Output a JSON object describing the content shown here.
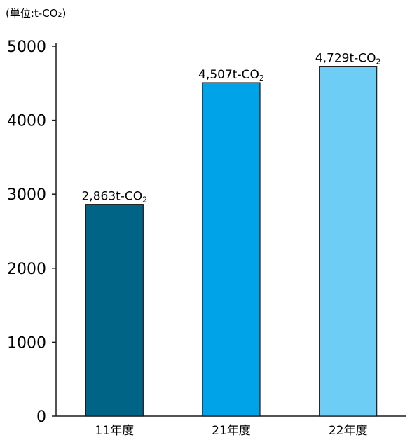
{
  "chart_data": {
    "type": "bar",
    "unit_label": "(単位:t-CO₂)",
    "categories": [
      "11年度",
      "21年度",
      "22年度"
    ],
    "values": [
      2863,
      4507,
      4729
    ],
    "data_labels": [
      "2,863t-CO",
      "4,507t-CO",
      "4,729t-CO"
    ],
    "data_label_subscript": "2",
    "bar_colors": [
      "#006487",
      "#00a3e8",
      "#6ecdf4"
    ],
    "ylim": [
      0,
      5000
    ],
    "yticks": [
      0,
      1000,
      2000,
      3000,
      4000,
      5000
    ],
    "grid": false,
    "xlabel": "",
    "ylabel": "",
    "title": ""
  }
}
